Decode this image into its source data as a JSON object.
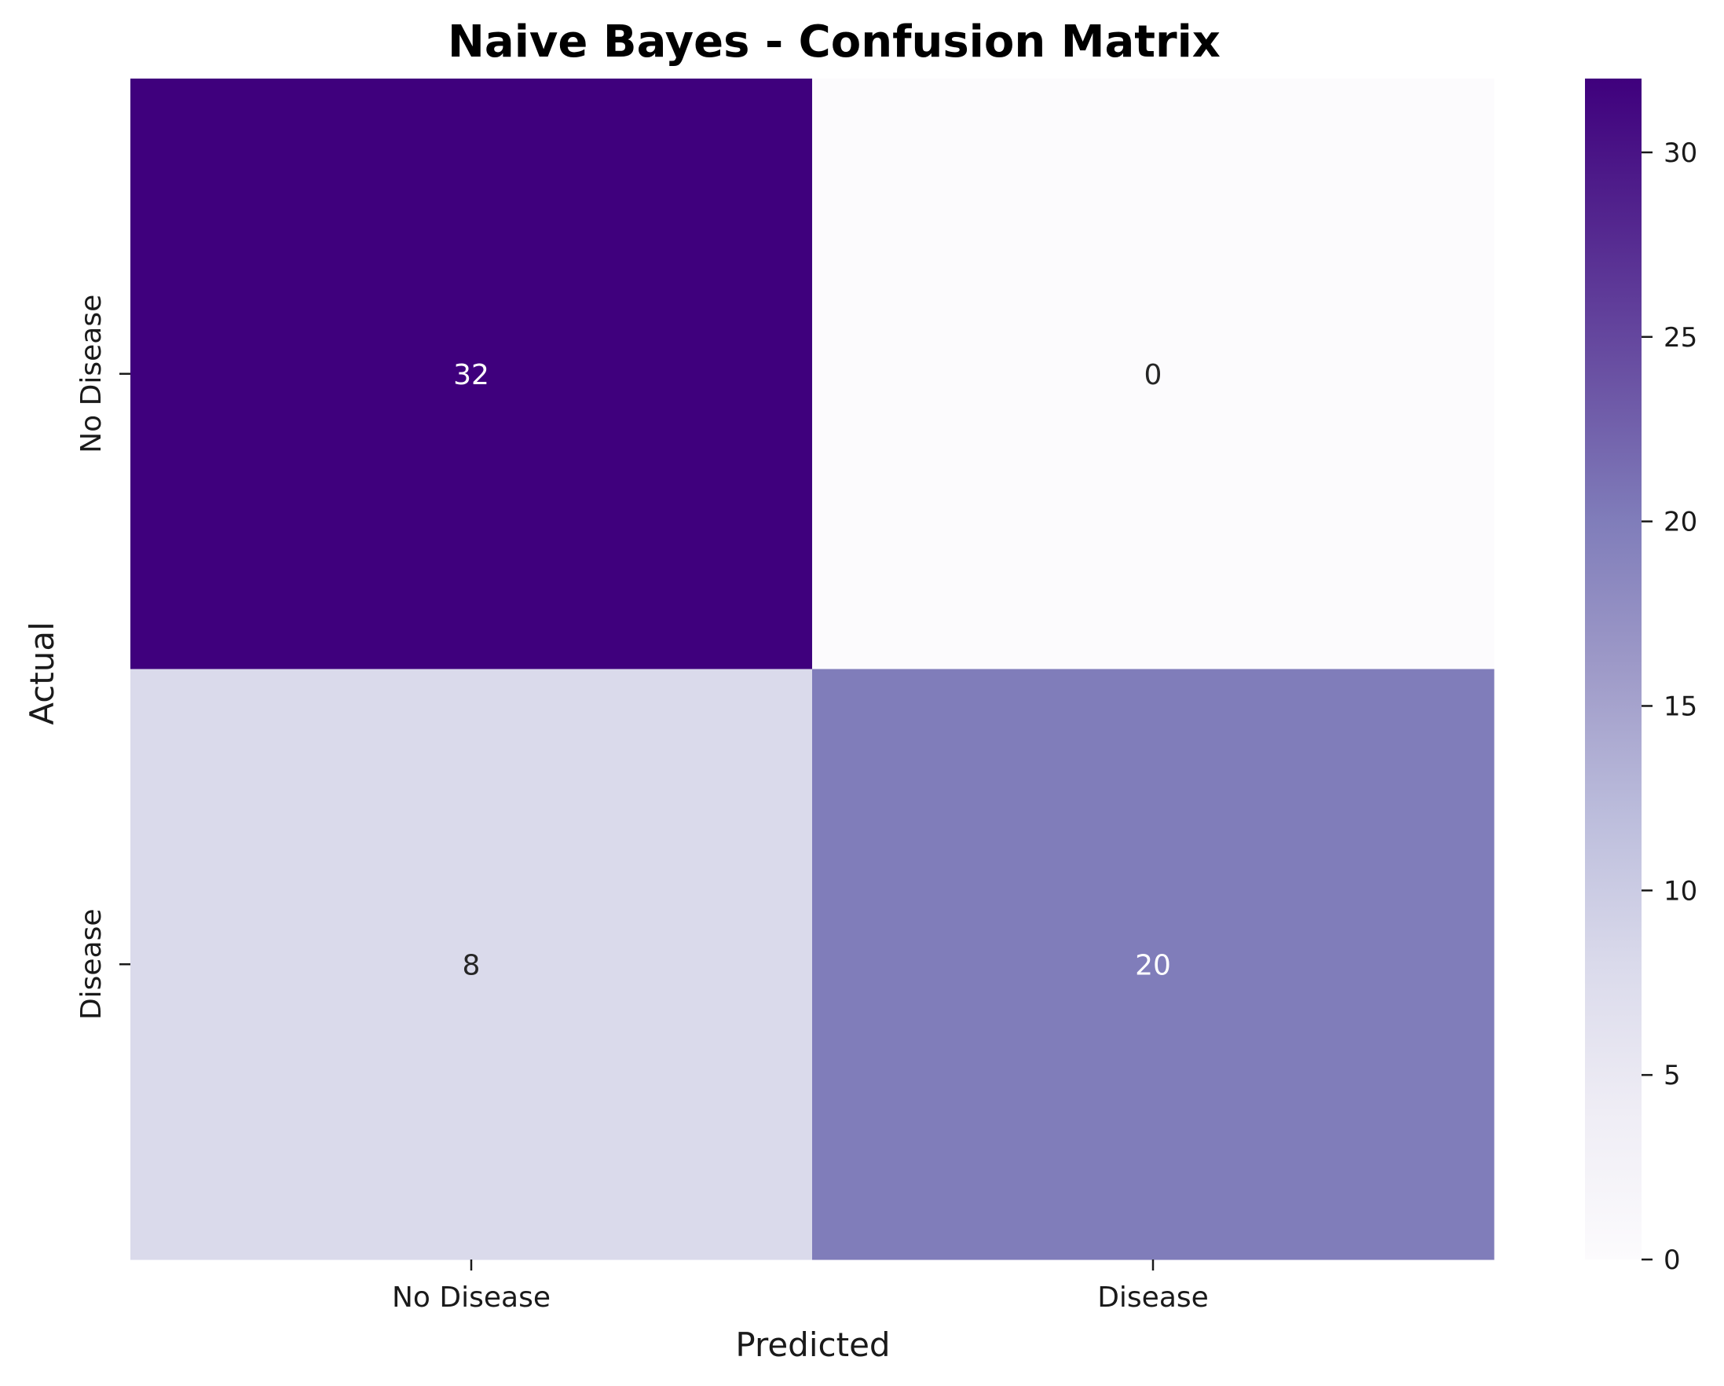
{
  "chart_data": {
    "type": "heatmap",
    "title": "Naive Bayes - Confusion Matrix",
    "xlabel": "Predicted",
    "ylabel": "Actual",
    "x_categories": [
      "No Disease",
      "Disease"
    ],
    "y_categories": [
      "No Disease",
      "Disease"
    ],
    "values": [
      [
        32,
        0
      ],
      [
        8,
        20
      ]
    ],
    "colormap": "Purples",
    "color_range": [
      0,
      32
    ],
    "colorbar_ticks": [
      0,
      5,
      10,
      15,
      20,
      25,
      30
    ],
    "colorbar_tick_labels": [
      "0",
      "5",
      "10",
      "15",
      "20",
      "25",
      "30"
    ],
    "colors": {
      "min": "#fcfbfd",
      "max": "#3f007d",
      "text_light": "#ffffff",
      "text_dark": "#262626"
    },
    "grid": false,
    "legend": "colorbar-right"
  }
}
